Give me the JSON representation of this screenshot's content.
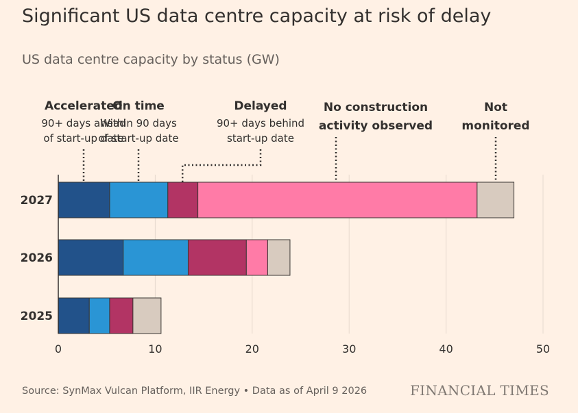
{
  "title": "Significant US data centre capacity at risk of delay",
  "subtitle": "US data centre capacity by status (GW)",
  "source": "Source: SynMax Vulcan Platform, IIR Energy • Data as of April 9 2026",
  "brand": "FINANCIAL TIMES",
  "colors": {
    "accelerated": "#22528A",
    "on_time": "#2A95D5",
    "delayed": "#B23464",
    "no_construction": "#FF7BA7",
    "not_monitored": "#D8CBBF"
  },
  "annotations": [
    {
      "key": "accelerated",
      "title": "Accelerated",
      "desc": [
        "90+ days ahead",
        "of start-up date"
      ]
    },
    {
      "key": "on_time",
      "title": "On time",
      "desc": [
        "Within 90 days",
        "of start-up date"
      ]
    },
    {
      "key": "delayed",
      "title": "Delayed",
      "desc": [
        "90+ days behind",
        "start-up date"
      ]
    },
    {
      "key": "no_construction",
      "title": "No construction",
      "title2": "activity observed",
      "desc": []
    },
    {
      "key": "not_monitored",
      "title": "Not",
      "title2": "monitored",
      "desc": []
    }
  ],
  "chart_data": {
    "type": "bar",
    "orientation": "horizontal",
    "stacked": true,
    "categories": [
      "2027",
      "2026",
      "2025"
    ],
    "series": [
      {
        "name": "Accelerated",
        "key": "accelerated",
        "values": [
          5.3,
          6.7,
          3.2
        ]
      },
      {
        "name": "On time",
        "key": "on_time",
        "values": [
          6.0,
          6.7,
          2.1
        ]
      },
      {
        "name": "Delayed",
        "key": "delayed",
        "values": [
          3.1,
          6.0,
          2.4
        ]
      },
      {
        "name": "No construction activity observed",
        "key": "no_construction",
        "values": [
          28.8,
          2.2,
          0
        ]
      },
      {
        "name": "Not monitored",
        "key": "not_monitored",
        "values": [
          3.8,
          2.3,
          2.9
        ]
      }
    ],
    "xlim": [
      0,
      50
    ],
    "xticks": [
      0,
      10,
      20,
      30,
      40,
      50
    ],
    "grid": true,
    "legend": "annotated above bars"
  }
}
